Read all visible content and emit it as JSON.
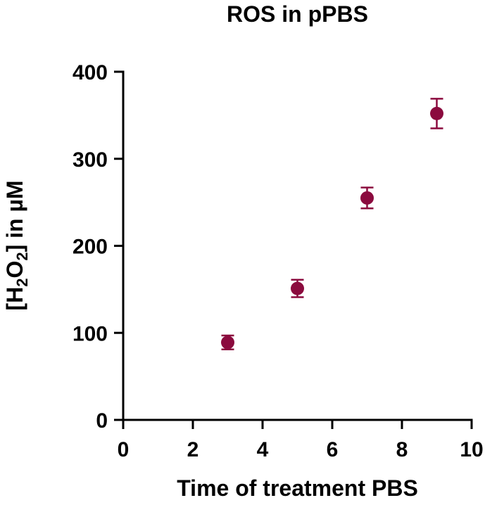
{
  "chart_data": {
    "type": "scatter",
    "title": "ROS in pPBS",
    "xlabel": "Time of treatment PBS",
    "ylabel": {
      "prefix": "[H",
      "sub1": "2",
      "mid": "O",
      "sub2": "2",
      "suffix": "] in µM"
    },
    "xlim": [
      0,
      10
    ],
    "ylim": [
      0,
      400
    ],
    "xticks": [
      0,
      2,
      4,
      6,
      8,
      10
    ],
    "yticks": [
      0,
      100,
      200,
      300,
      400
    ],
    "grid": false,
    "color": "#8b0a3e",
    "series": [
      {
        "x": [
          3,
          5,
          7,
          9
        ],
        "y": [
          89,
          151,
          255,
          352
        ],
        "error": [
          8,
          10,
          12,
          17
        ]
      }
    ]
  }
}
